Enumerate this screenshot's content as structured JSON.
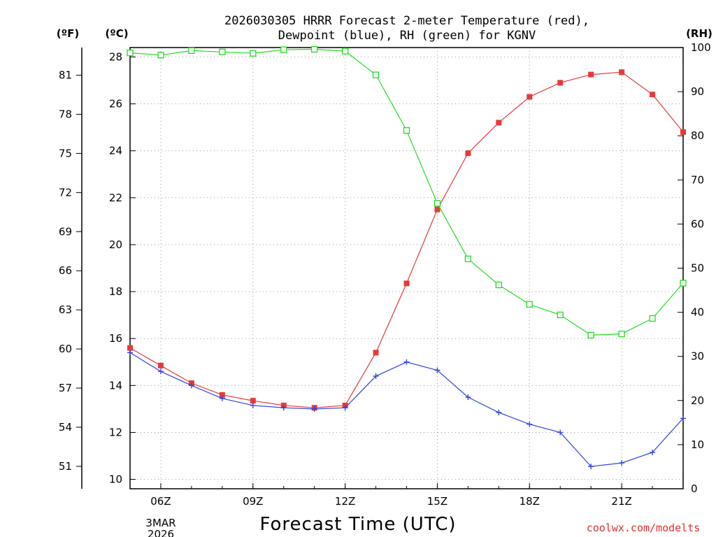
{
  "chart_data": {
    "type": "line",
    "title_lines": [
      "2026030305 HRRR Forecast 2-meter Temperature (red),",
      "Dewpoint (blue), RH (green) for KGNV"
    ],
    "xlabel": "Forecast Time (UTC)",
    "credit": "coolwx.com/modelts",
    "units": {
      "fahrenheit": "(ºF)",
      "celsius": "(ºC)",
      "rh": "(RH)"
    },
    "x_hours_after_05z": [
      0,
      1,
      2,
      3,
      4,
      5,
      6,
      7,
      8,
      9,
      10,
      11,
      12,
      13,
      14,
      15,
      16,
      17,
      18
    ],
    "xlim": [
      0,
      18
    ],
    "x_ticks": [
      {
        "hour": 1,
        "label": "06Z"
      },
      {
        "hour": 4,
        "label": "09Z"
      },
      {
        "hour": 7,
        "label": "12Z"
      },
      {
        "hour": 10,
        "label": "15Z"
      },
      {
        "hour": 13,
        "label": "18Z"
      },
      {
        "hour": 16,
        "label": "21Z"
      }
    ],
    "date_labels": [
      "3MAR",
      "2026"
    ],
    "y_celsius": {
      "lim": [
        9.6,
        28.4
      ],
      "ticks": [
        10,
        12,
        14,
        16,
        18,
        20,
        22,
        24,
        26,
        28
      ]
    },
    "y_fahrenheit_ticks": [
      51,
      54,
      57,
      60,
      63,
      66,
      69,
      72,
      75,
      78,
      81
    ],
    "y_rh": {
      "lim": [
        0,
        100
      ],
      "ticks": [
        0,
        10,
        20,
        30,
        40,
        50,
        60,
        70,
        80,
        90,
        100
      ]
    },
    "series": [
      {
        "name": "Temperature",
        "axis": "celsius",
        "color": "#e8393a",
        "marker": "filled-square",
        "values": [
          15.6,
          14.85,
          14.1,
          13.6,
          13.35,
          13.15,
          13.05,
          13.15,
          15.4,
          18.35,
          21.5,
          23.9,
          25.2,
          26.3,
          26.9,
          27.25,
          27.35,
          26.4,
          24.8
        ]
      },
      {
        "name": "Dewpoint",
        "axis": "celsius",
        "color": "#3344dd",
        "marker": "plus",
        "values": [
          15.4,
          14.6,
          14.0,
          13.45,
          13.15,
          13.05,
          13.0,
          13.05,
          14.4,
          15.0,
          14.65,
          13.5,
          12.85,
          12.35,
          12.0,
          10.55,
          10.7,
          11.15,
          12.6
        ]
      },
      {
        "name": "RH",
        "axis": "rh",
        "color": "#22dd22",
        "marker": "open-square",
        "values": [
          98.8,
          98.3,
          99.3,
          99.0,
          98.7,
          99.5,
          99.6,
          99.2,
          93.8,
          81.2,
          64.7,
          52.1,
          46.2,
          41.8,
          39.4,
          34.8,
          35.1,
          38.6,
          46.6
        ]
      }
    ]
  }
}
